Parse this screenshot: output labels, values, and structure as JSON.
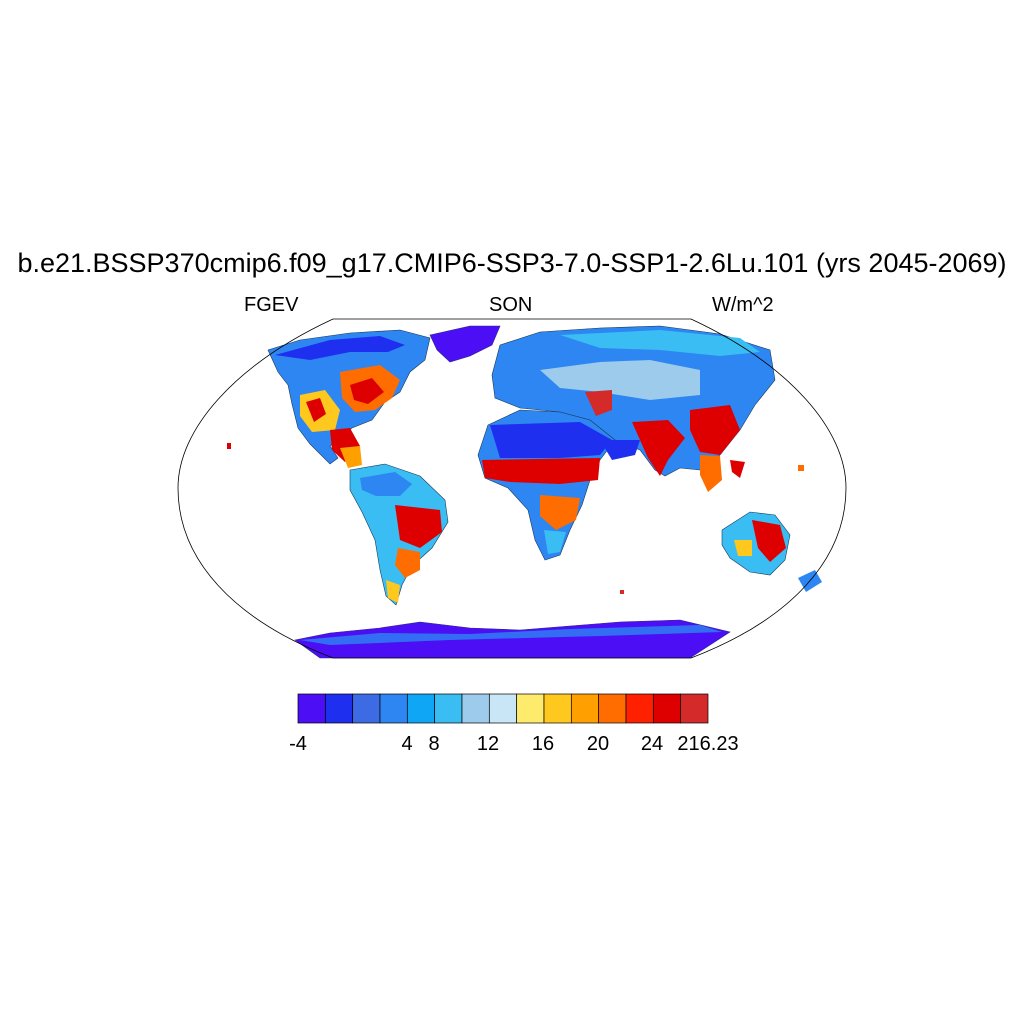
{
  "title": "b.e21.BSSP370cmip6.f09_g17.CMIP6-SSP3-7.0-SSP1-2.6Lu.101 (yrs 2045-2069)",
  "variable": "FGEV",
  "season": "SON",
  "units": "W/m^2",
  "colorbar": {
    "colors": [
      "#4b0ef5",
      "#1e2ff0",
      "#3d6be3",
      "#2d86f2",
      "#0fa6f5",
      "#39bdf2",
      "#9ccbec",
      "#c8e6f6",
      "#ffeb6b",
      "#ffc81e",
      "#ffa000",
      "#ff6d00",
      "#ff2000",
      "#de0000",
      "#d42a2a"
    ],
    "labels": [
      "-4",
      "4",
      "8",
      "12",
      "16",
      "20",
      "24",
      "216.23"
    ]
  },
  "map": {
    "projection": "Robinson",
    "colors": {
      "neg": "#4b0ef5",
      "low": "#1e2ff0",
      "mid_blue": "#2d86f2",
      "light_blue": "#39bdf2",
      "pale": "#9ccbec",
      "yellow": "#ffc81e",
      "orange": "#ff6d00",
      "red": "#de0000",
      "dark_red": "#d42a2a"
    }
  }
}
